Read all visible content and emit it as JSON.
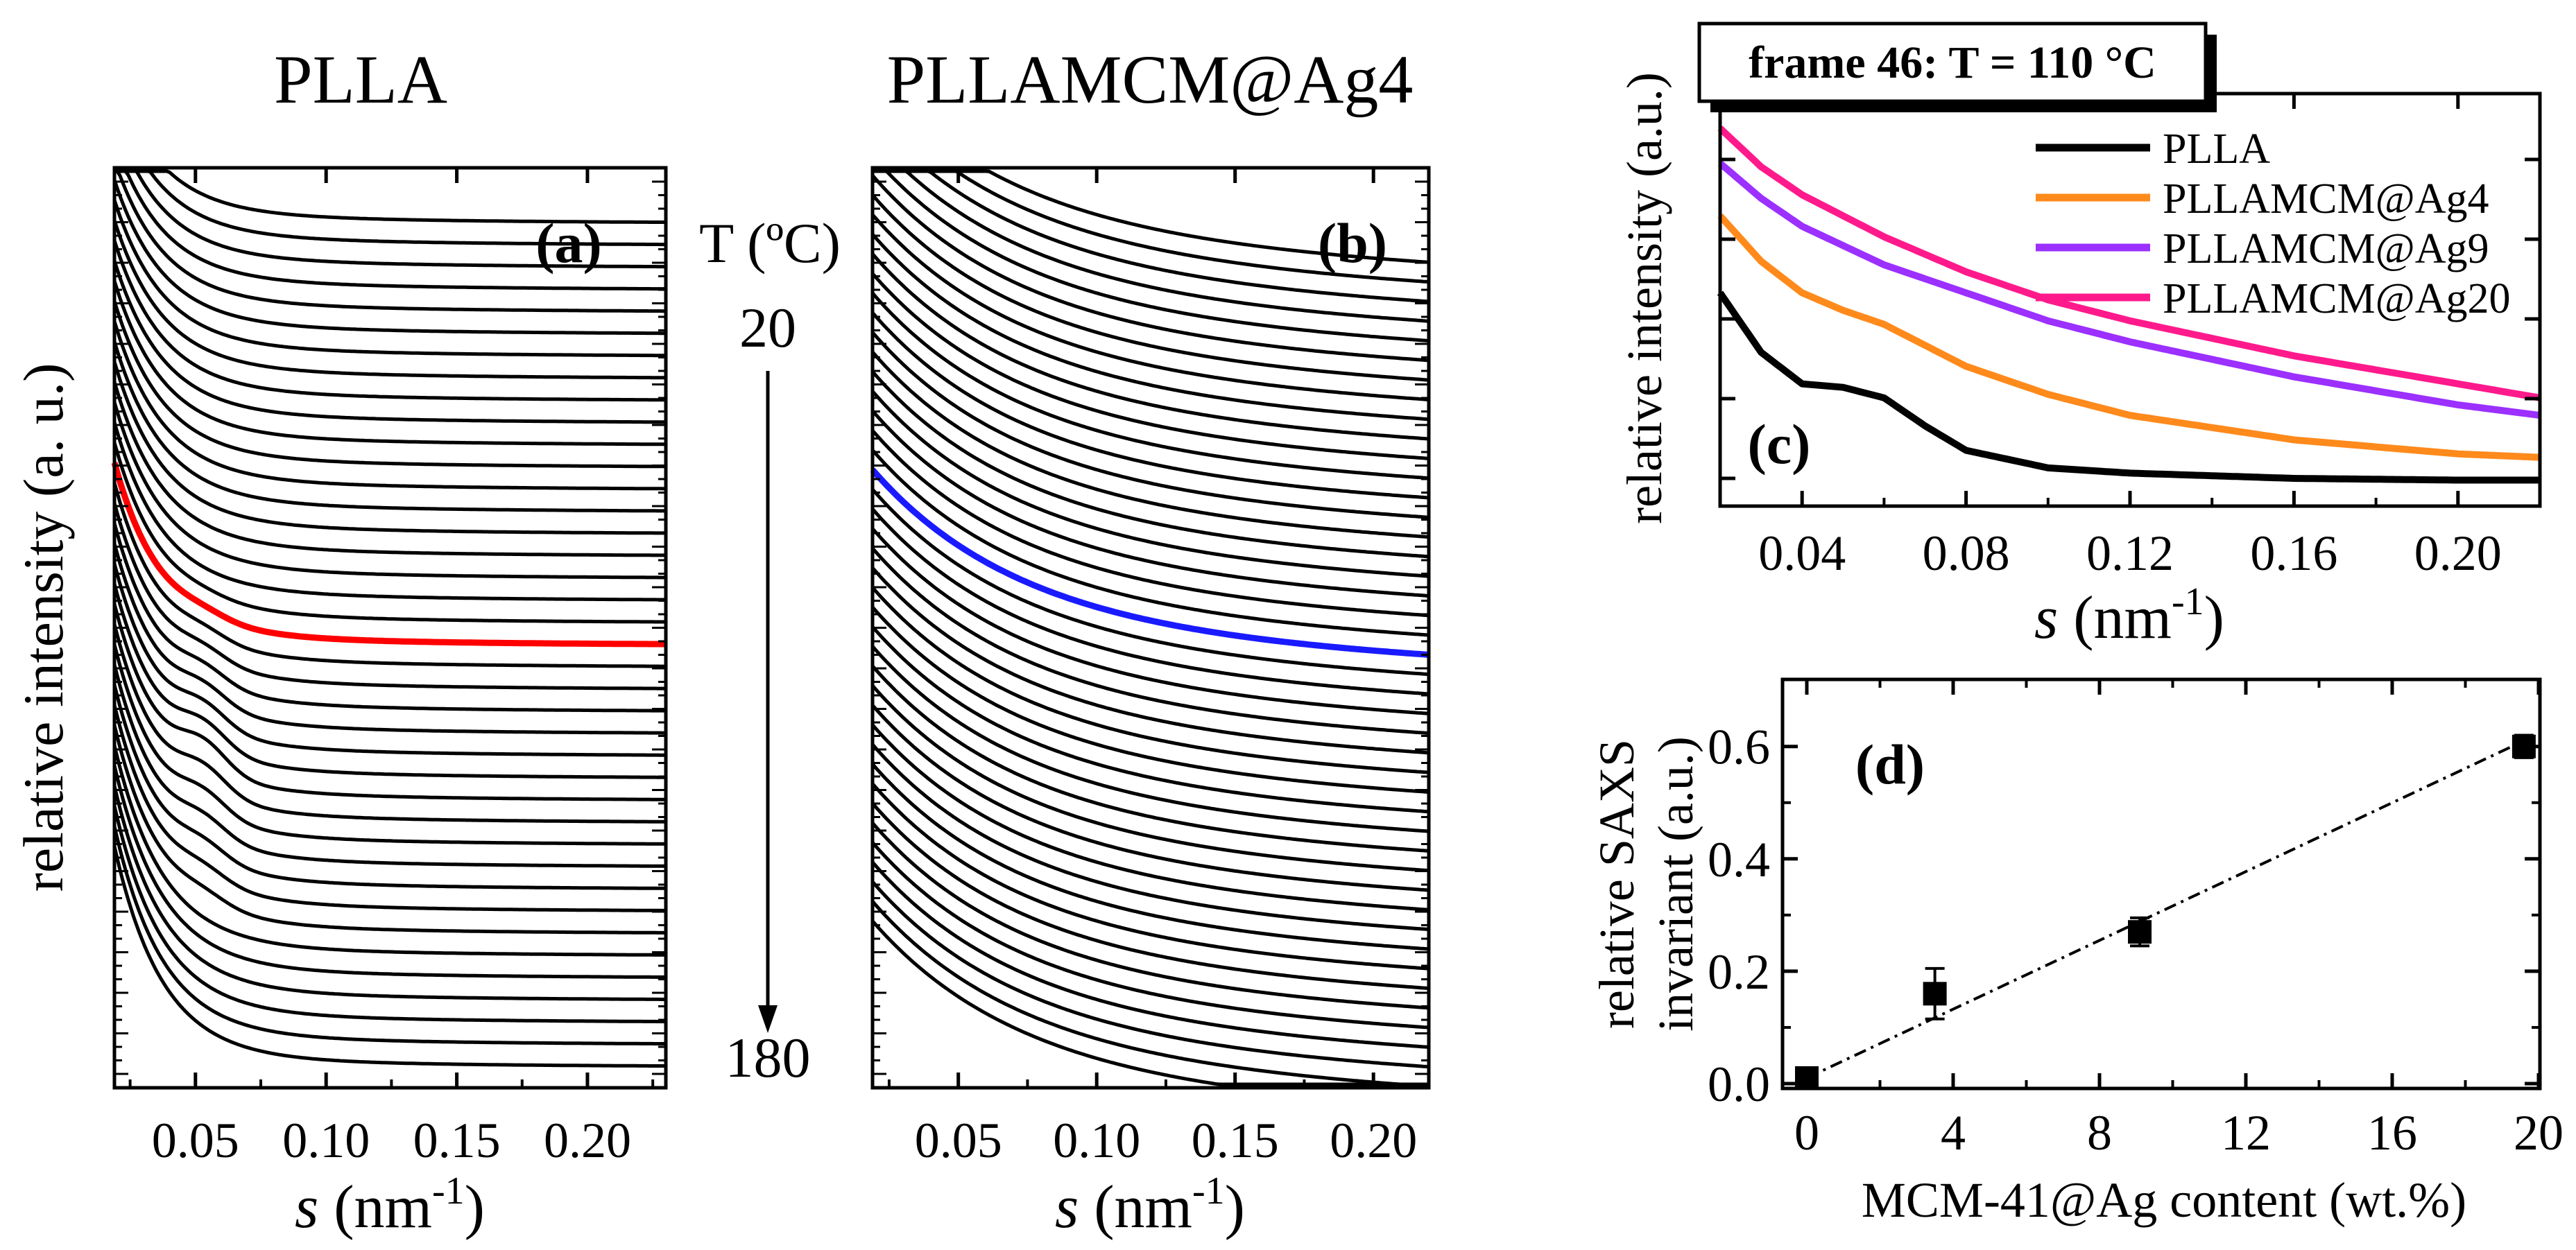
{
  "figure": {
    "panel_a_heading": "PLLA",
    "panel_b_heading": "PLLAMCM@Ag4",
    "temperature_label": "T (ºC)",
    "temperature_start": "20",
    "temperature_end": "180"
  },
  "colors": {
    "black": "#000000",
    "red": "#ff0000",
    "blue": "#1a1aff",
    "orange": "#ff8a1c",
    "violet": "#9b30ff",
    "pink": "#ff1a8c"
  },
  "chart_data": [
    {
      "id": "a",
      "type": "line",
      "title": "PLLA",
      "panel_label": "(a)",
      "xlabel_italic": "s",
      "xlabel_unit": " (nm",
      "xlabel_sup": "-1",
      "xlabel_close": ")",
      "ylabel": "relative intensity (a. u.)",
      "xlim": [
        0.019,
        0.23
      ],
      "ylim": [
        0,
        100
      ],
      "xticks": [
        0.05,
        0.1,
        0.15,
        0.2
      ],
      "xtick_labels": [
        "0.05",
        "0.10",
        "0.15",
        "0.20"
      ],
      "stack_count": 39,
      "highlight_frame": 19,
      "highlight_color": "red",
      "series_note": "SAXS profiles from 20 to 180 ºC, vertically stacked; high-T frames show a peak near s = 0.05 nm^-1"
    },
    {
      "id": "b",
      "type": "line",
      "title": "PLLAMCM@Ag4",
      "panel_label": "(b)",
      "xlabel_italic": "s",
      "xlabel_unit": " (nm",
      "xlabel_sup": "-1",
      "xlabel_close": ")",
      "xlim": [
        0.019,
        0.22
      ],
      "ylim": [
        0,
        100
      ],
      "xticks": [
        0.05,
        0.1,
        0.15,
        0.2
      ],
      "xtick_labels": [
        "0.05",
        "0.10",
        "0.15",
        "0.20"
      ],
      "stack_count": 44,
      "highlight_frame": 20,
      "highlight_color": "blue",
      "series_note": "SAXS profiles, monotonic decay, vertically stacked"
    },
    {
      "id": "c",
      "type": "line",
      "frame_label": "frame 46: T = 110 °C",
      "panel_label": "(c)",
      "xlabel_italic": "s",
      "xlabel_unit": " (nm",
      "xlabel_sup": "-1",
      "xlabel_close": ")",
      "ylabel": "relative intensity (a.u.)",
      "xlim": [
        0.02,
        0.22
      ],
      "ylim": [
        0,
        100
      ],
      "xticks": [
        0.04,
        0.08,
        0.12,
        0.16,
        0.2
      ],
      "xtick_labels": [
        "0.04",
        "0.08",
        "0.12",
        "0.16",
        "0.20"
      ],
      "series": [
        {
          "name": "PLLA",
          "color": "black",
          "x": [
            0.02,
            0.03,
            0.04,
            0.05,
            0.06,
            0.07,
            0.08,
            0.1,
            0.12,
            0.16,
            0.2,
            0.22
          ],
          "y": [
            53,
            36,
            27,
            26,
            23,
            15,
            8,
            3,
            1.5,
            0,
            -0.5,
            -0.5
          ]
        },
        {
          "name": "PLLAMCM@Ag4",
          "color": "orange",
          "x": [
            0.02,
            0.03,
            0.04,
            0.05,
            0.06,
            0.07,
            0.08,
            0.1,
            0.12,
            0.16,
            0.2,
            0.22
          ],
          "y": [
            75,
            62,
            53,
            48,
            44,
            38,
            32,
            24,
            18,
            11,
            7,
            6
          ]
        },
        {
          "name": "PLLAMCM@Ag9",
          "color": "violet",
          "x": [
            0.02,
            0.03,
            0.04,
            0.06,
            0.08,
            0.1,
            0.12,
            0.16,
            0.2,
            0.22
          ],
          "y": [
            90,
            80,
            72,
            61,
            53,
            45,
            39,
            29,
            21,
            18
          ]
        },
        {
          "name": "PLLAMCM@Ag20",
          "color": "pink",
          "x": [
            0.02,
            0.03,
            0.04,
            0.06,
            0.08,
            0.1,
            0.12,
            0.16,
            0.2,
            0.22
          ],
          "y": [
            100,
            89,
            81,
            69,
            59,
            51,
            45,
            35,
            27,
            23
          ]
        }
      ]
    },
    {
      "id": "d",
      "type": "scatter",
      "panel_label": "(d)",
      "xlabel": "MCM-41@Ag content (wt.%)",
      "ylabel_line1": "relative SAXS",
      "ylabel_line2": "invariant (a.u.)",
      "xlim": [
        0,
        20
      ],
      "ylim": [
        0,
        0.7
      ],
      "xticks": [
        0,
        4,
        8,
        12,
        16,
        20
      ],
      "xtick_labels": [
        "0",
        "4",
        "8",
        "12",
        "16",
        "20"
      ],
      "yticks": [
        0.0,
        0.2,
        0.4,
        0.6
      ],
      "ytick_labels": [
        "0.0",
        "0.2",
        "0.4",
        "0.6"
      ],
      "points": [
        {
          "x": 0,
          "y": 0.01,
          "err": 0.005
        },
        {
          "x": 3.5,
          "y": 0.16,
          "err": 0.045
        },
        {
          "x": 9.1,
          "y": 0.27,
          "err": 0.025
        },
        {
          "x": 19.6,
          "y": 0.6,
          "err": 0.02
        }
      ],
      "fit_line": {
        "x": [
          0,
          19.6
        ],
        "y": [
          0.01,
          0.61
        ],
        "style": "dash-dot"
      }
    }
  ]
}
